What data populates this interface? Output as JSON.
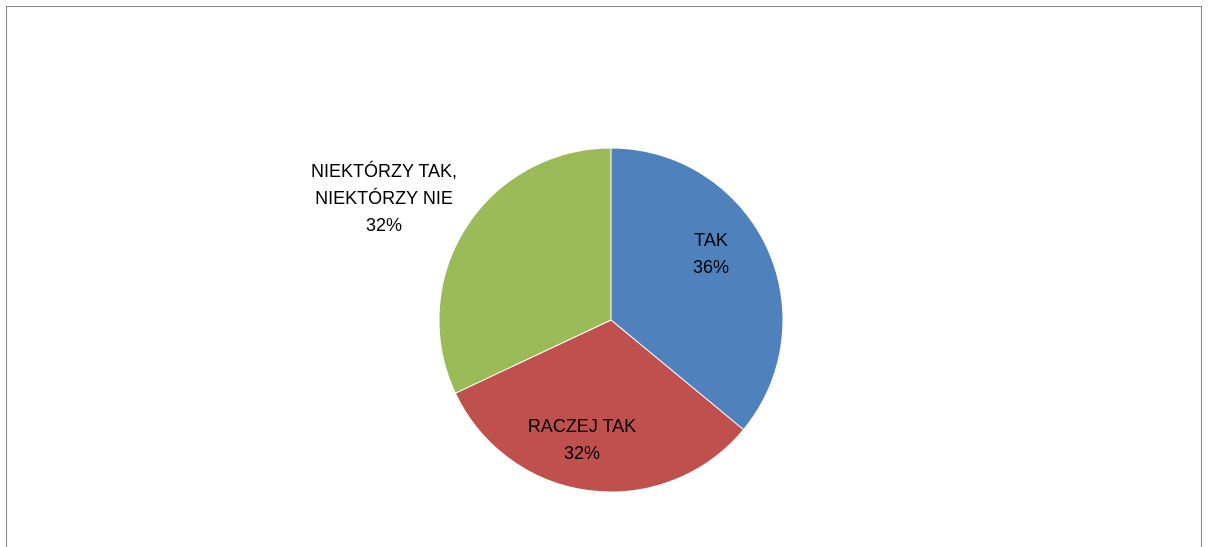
{
  "chart_data": {
    "type": "pie",
    "categories": [
      "TAK",
      "RACZEJ TAK",
      "NIEKTÓRZY TAK, NIEKTÓRZY NIE"
    ],
    "values": [
      36,
      32,
      32
    ],
    "value_labels": [
      "36%",
      "32%",
      "32%"
    ],
    "colors": [
      "#4f81bd",
      "#c0504d",
      "#9bbb59"
    ]
  }
}
